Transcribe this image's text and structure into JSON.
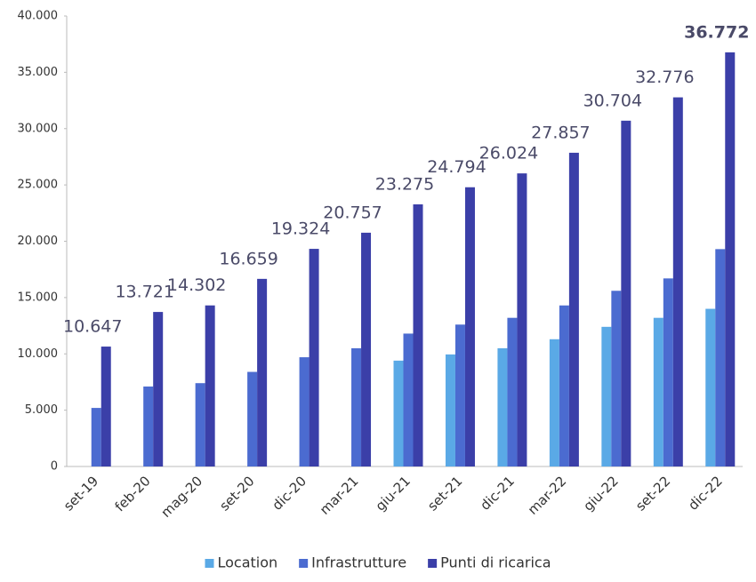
{
  "chart_data": {
    "type": "bar",
    "categories": [
      "set-19",
      "feb-20",
      "mag-20",
      "set-20",
      "dic-20",
      "mar-21",
      "giu-21",
      "set-21",
      "dic-21",
      "mar-22",
      "giu-22",
      "set-22",
      "dic-22"
    ],
    "series": [
      {
        "name": "Location",
        "color": "#5aa9e6",
        "values": [
          null,
          null,
          null,
          null,
          null,
          null,
          9400,
          9950,
          10500,
          11300,
          12400,
          13200,
          14000
        ]
      },
      {
        "name": "Infrastrutture",
        "color": "#4b6bd0",
        "values": [
          5200,
          7100,
          7400,
          8400,
          9700,
          10500,
          11800,
          12600,
          13200,
          14300,
          15600,
          16700,
          19300
        ]
      },
      {
        "name": "Punti di ricarica",
        "color": "#3b3fa8",
        "values": [
          10647,
          13721,
          14302,
          16659,
          19324,
          20757,
          23275,
          24794,
          26024,
          27857,
          30704,
          32776,
          36772
        ],
        "value_labels": [
          "10.647",
          "13.721",
          "14.302",
          "16.659",
          "19.324",
          "20.757",
          "23.275",
          "24.794",
          "26.024",
          "27.857",
          "30.704",
          "32.776",
          "36.772"
        ]
      }
    ],
    "ylim": [
      0,
      40000
    ],
    "yticks": [
      0,
      {
        "value": 5000,
        "label": "5.000"
      },
      {
        "value": 10000,
        "label": "10.000"
      },
      {
        "value": 15000,
        "label": "15.000"
      },
      {
        "value": 20000,
        "label": "20.000"
      },
      {
        "value": 25000,
        "label": "25.000"
      },
      {
        "value": 30000,
        "label": "30.000"
      },
      {
        "value": 35000,
        "label": "35.000"
      },
      {
        "value": 40000,
        "label": "40.000"
      }
    ],
    "legend": "bottom"
  }
}
